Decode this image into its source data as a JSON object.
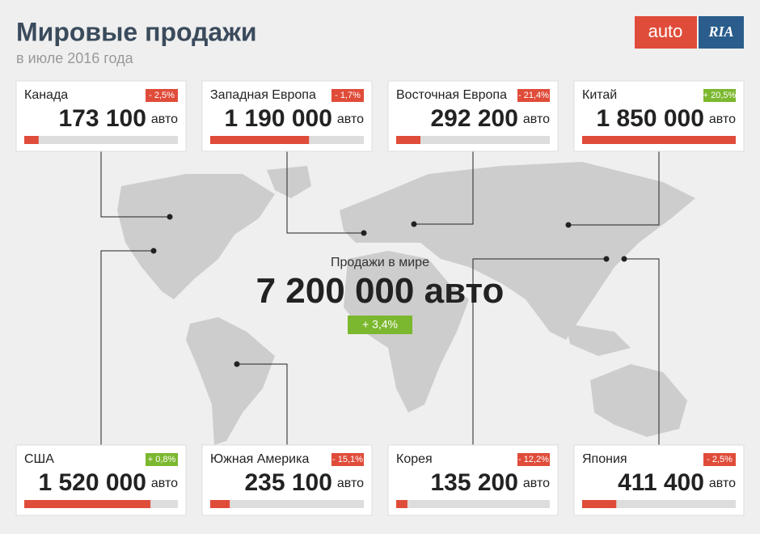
{
  "header": {
    "title": "Мировые продажи",
    "subtitle": "в июле 2016 года",
    "logo": {
      "left": "auto",
      "right": "RIA"
    }
  },
  "world": {
    "label": "Продажи в мире",
    "value_label": "7 200 000",
    "unit": "авто",
    "change": "+ 3,4%"
  },
  "regions": [
    {
      "name": "Канада",
      "value": 173100,
      "value_label": "173 100",
      "unit": "авто",
      "change": "- 2,5%"
    },
    {
      "name": "Западная Европа",
      "value": 1190000,
      "value_label": "1 190 000",
      "unit": "авто",
      "change": "- 1,7%"
    },
    {
      "name": "Восточная Европа",
      "value": 292200,
      "value_label": "292 200",
      "unit": "авто",
      "change": "- 21,4%"
    },
    {
      "name": "Китай",
      "value": 1850000,
      "value_label": "1 850 000",
      "unit": "авто",
      "change": "+ 20,5%"
    },
    {
      "name": "США",
      "value": 1520000,
      "value_label": "1 520 000",
      "unit": "авто",
      "change": "+ 0,8%"
    },
    {
      "name": "Южная Америка",
      "value": 235100,
      "value_label": "235 100",
      "unit": "авто",
      "change": "- 15,1%"
    },
    {
      "name": "Корея",
      "value": 135200,
      "value_label": "135 200",
      "unit": "авто",
      "change": "- 12,2%"
    },
    {
      "name": "Япония",
      "value": 411400,
      "value_label": "411 400",
      "unit": "авто",
      "change": "- 2,5%"
    }
  ]
}
